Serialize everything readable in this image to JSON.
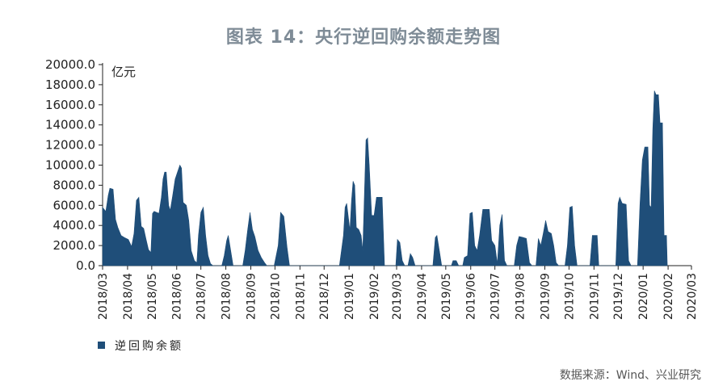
{
  "title": "图表 14：央行逆回购余额走势图",
  "source": "数据来源：Wind、兴业研究",
  "chart_data": {
    "type": "area",
    "unit_label": "亿元",
    "ylim": [
      0,
      20000
    ],
    "yticks": [
      "20000.0",
      "18000.0",
      "16000.0",
      "14000.0",
      "12000.0",
      "10000.0",
      "8000.0",
      "6000.0",
      "4000.0",
      "2000.0",
      "0.0"
    ],
    "xticks": [
      "2018/03",
      "2018/04",
      "2018/05",
      "2018/06",
      "2018/07",
      "2018/08",
      "2018/09",
      "2018/10",
      "2018/11",
      "2018/12",
      "2019/01",
      "2019/02",
      "2019/03",
      "2019/04",
      "2019/05",
      "2019/06",
      "2019/07",
      "2019/08",
      "2019/09",
      "2019/10",
      "2019/11",
      "2019/12",
      "2020/01",
      "2020/02",
      "2020/03"
    ],
    "color": "#1f4e79",
    "grid": false,
    "legend_position": "bottom-left",
    "series": [
      {
        "name": "逆回购余额",
        "points": [
          [
            "2018-03-01",
            5800
          ],
          [
            "2018-03-05",
            5400
          ],
          [
            "2018-03-08",
            7000
          ],
          [
            "2018-03-10",
            7700
          ],
          [
            "2018-03-14",
            7600
          ],
          [
            "2018-03-17",
            4600
          ],
          [
            "2018-03-20",
            3800
          ],
          [
            "2018-03-24",
            3000
          ],
          [
            "2018-03-28",
            2800
          ],
          [
            "2018-04-02",
            2600
          ],
          [
            "2018-04-06",
            1900
          ],
          [
            "2018-04-09",
            3200
          ],
          [
            "2018-04-12",
            6500
          ],
          [
            "2018-04-15",
            6800
          ],
          [
            "2018-04-18",
            3900
          ],
          [
            "2018-04-21",
            3700
          ],
          [
            "2018-04-24",
            2600
          ],
          [
            "2018-04-27",
            1600
          ],
          [
            "2018-04-30",
            1300
          ],
          [
            "2018-05-02",
            5200
          ],
          [
            "2018-05-04",
            5400
          ],
          [
            "2018-05-10",
            5200
          ],
          [
            "2018-05-13",
            6800
          ],
          [
            "2018-05-15",
            8600
          ],
          [
            "2018-05-17",
            9300
          ],
          [
            "2018-05-19",
            9300
          ],
          [
            "2018-05-22",
            6000
          ],
          [
            "2018-05-24",
            5500
          ],
          [
            "2018-05-27",
            7000
          ],
          [
            "2018-05-30",
            8600
          ],
          [
            "2018-06-02",
            9300
          ],
          [
            "2018-06-05",
            10000
          ],
          [
            "2018-06-07",
            9700
          ],
          [
            "2018-06-09",
            6300
          ],
          [
            "2018-06-13",
            6000
          ],
          [
            "2018-06-16",
            4500
          ],
          [
            "2018-06-19",
            1500
          ],
          [
            "2018-06-23",
            500
          ],
          [
            "2018-06-26",
            300
          ],
          [
            "2018-06-28",
            3000
          ],
          [
            "2018-07-01",
            5300
          ],
          [
            "2018-07-04",
            5800
          ],
          [
            "2018-07-07",
            3000
          ],
          [
            "2018-07-10",
            1000
          ],
          [
            "2018-07-13",
            200
          ],
          [
            "2018-07-16",
            0
          ],
          [
            "2018-07-27",
            0
          ],
          [
            "2018-07-30",
            1000
          ],
          [
            "2018-08-02",
            2500
          ],
          [
            "2018-08-04",
            3000
          ],
          [
            "2018-08-07",
            1500
          ],
          [
            "2018-08-10",
            0
          ],
          [
            "2018-08-22",
            0
          ],
          [
            "2018-08-25",
            1500
          ],
          [
            "2018-08-28",
            3500
          ],
          [
            "2018-08-31",
            5300
          ],
          [
            "2018-09-03",
            3600
          ],
          [
            "2018-09-06",
            2900
          ],
          [
            "2018-09-10",
            1500
          ],
          [
            "2018-09-14",
            800
          ],
          [
            "2018-09-18",
            300
          ],
          [
            "2018-09-21",
            0
          ],
          [
            "2018-09-30",
            0
          ],
          [
            "2018-10-05",
            2000
          ],
          [
            "2018-10-08",
            5300
          ],
          [
            "2018-10-12",
            4900
          ],
          [
            "2018-10-16",
            1800
          ],
          [
            "2018-10-19",
            0
          ],
          [
            "2018-12-20",
            0
          ],
          [
            "2018-12-25",
            3000
          ],
          [
            "2018-12-27",
            5800
          ],
          [
            "2018-12-29",
            6200
          ],
          [
            "2019-01-02",
            3500
          ],
          [
            "2019-01-04",
            6500
          ],
          [
            "2019-01-06",
            8400
          ],
          [
            "2019-01-08",
            8000
          ],
          [
            "2019-01-10",
            3800
          ],
          [
            "2019-01-13",
            3600
          ],
          [
            "2019-01-16",
            3000
          ],
          [
            "2019-01-18",
            1500
          ],
          [
            "2019-01-20",
            7000
          ],
          [
            "2019-01-22",
            12500
          ],
          [
            "2019-01-24",
            12700
          ],
          [
            "2019-01-26",
            10000
          ],
          [
            "2019-01-29",
            5000
          ],
          [
            "2019-02-01",
            5000
          ],
          [
            "2019-02-04",
            6800
          ],
          [
            "2019-02-11",
            6800
          ],
          [
            "2019-02-14",
            0
          ],
          [
            "2019-02-28",
            0
          ],
          [
            "2019-03-02",
            2600
          ],
          [
            "2019-03-05",
            2300
          ],
          [
            "2019-03-08",
            500
          ],
          [
            "2019-03-11",
            0
          ],
          [
            "2019-03-15",
            0
          ],
          [
            "2019-03-18",
            1200
          ],
          [
            "2019-03-21",
            800
          ],
          [
            "2019-03-24",
            0
          ],
          [
            "2019-04-15",
            0
          ],
          [
            "2019-04-18",
            2800
          ],
          [
            "2019-04-20",
            3000
          ],
          [
            "2019-04-23",
            1500
          ],
          [
            "2019-04-26",
            0
          ],
          [
            "2019-05-08",
            0
          ],
          [
            "2019-05-10",
            500
          ],
          [
            "2019-05-14",
            500
          ],
          [
            "2019-05-17",
            0
          ],
          [
            "2019-05-22",
            0
          ],
          [
            "2019-05-24",
            800
          ],
          [
            "2019-05-28",
            1000
          ],
          [
            "2019-05-31",
            5200
          ],
          [
            "2019-06-03",
            5300
          ],
          [
            "2019-06-06",
            2000
          ],
          [
            "2019-06-09",
            1500
          ],
          [
            "2019-06-12",
            3000
          ],
          [
            "2019-06-16",
            5600
          ],
          [
            "2019-06-24",
            5600
          ],
          [
            "2019-06-27",
            2500
          ],
          [
            "2019-07-01",
            2000
          ],
          [
            "2019-07-04",
            200
          ],
          [
            "2019-07-07",
            4000
          ],
          [
            "2019-07-10",
            5100
          ],
          [
            "2019-07-13",
            500
          ],
          [
            "2019-07-16",
            0
          ],
          [
            "2019-07-25",
            0
          ],
          [
            "2019-07-28",
            2000
          ],
          [
            "2019-07-31",
            2900
          ],
          [
            "2019-08-05",
            2800
          ],
          [
            "2019-08-09",
            2700
          ],
          [
            "2019-08-13",
            300
          ],
          [
            "2019-08-16",
            0
          ],
          [
            "2019-08-21",
            0
          ],
          [
            "2019-08-24",
            2700
          ],
          [
            "2019-08-27",
            2000
          ],
          [
            "2019-08-30",
            3200
          ],
          [
            "2019-09-02",
            4500
          ],
          [
            "2019-09-05",
            3400
          ],
          [
            "2019-09-09",
            3200
          ],
          [
            "2019-09-12",
            2000
          ],
          [
            "2019-09-15",
            300
          ],
          [
            "2019-09-18",
            0
          ],
          [
            "2019-09-26",
            0
          ],
          [
            "2019-09-29",
            2000
          ],
          [
            "2019-10-02",
            5800
          ],
          [
            "2019-10-05",
            5900
          ],
          [
            "2019-10-08",
            2000
          ],
          [
            "2019-10-11",
            0
          ],
          [
            "2019-10-27",
            0
          ],
          [
            "2019-10-30",
            3000
          ],
          [
            "2019-11-05",
            3000
          ],
          [
            "2019-11-07",
            0
          ],
          [
            "2019-11-28",
            0
          ],
          [
            "2019-12-01",
            6200
          ],
          [
            "2019-12-03",
            6800
          ],
          [
            "2019-12-06",
            6200
          ],
          [
            "2019-12-11",
            6100
          ],
          [
            "2019-12-14",
            500
          ],
          [
            "2019-12-17",
            0
          ],
          [
            "2019-12-25",
            0
          ],
          [
            "2019-12-28",
            6000
          ],
          [
            "2019-12-31",
            10500
          ],
          [
            "2020-01-03",
            11800
          ],
          [
            "2020-01-07",
            11800
          ],
          [
            "2020-01-09",
            6000
          ],
          [
            "2020-01-11",
            5800
          ],
          [
            "2020-01-13",
            13500
          ],
          [
            "2020-01-15",
            17400
          ],
          [
            "2020-01-17",
            17000
          ],
          [
            "2020-01-20",
            17000
          ],
          [
            "2020-01-22",
            14200
          ],
          [
            "2020-01-25",
            14200
          ],
          [
            "2020-01-27",
            3000
          ],
          [
            "2020-01-30",
            3000
          ],
          [
            "2020-01-31",
            0
          ]
        ]
      }
    ]
  }
}
